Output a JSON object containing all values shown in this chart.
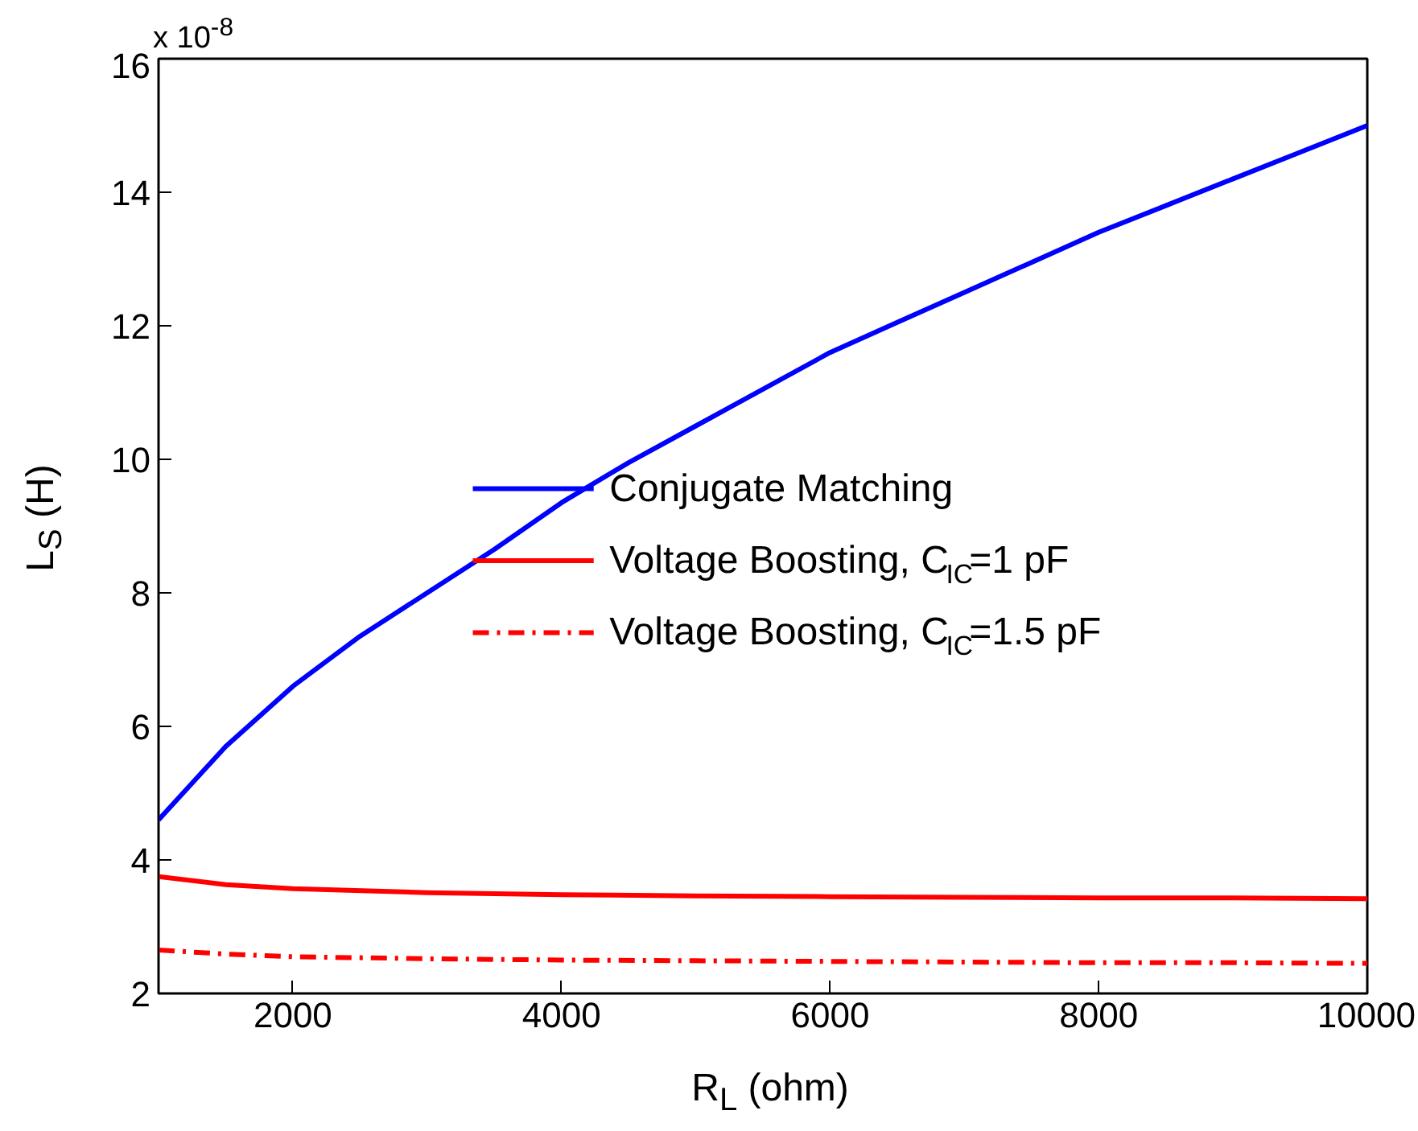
{
  "chart_data": {
    "type": "line",
    "xlabel": "R$_{L}$ (ohm)",
    "ylabel": "L$_{S}$ (H)",
    "annotations": [
      "x 10$^{-8}$"
    ],
    "xlim": [
      1000,
      10000
    ],
    "xticks": [
      2000,
      4000,
      6000,
      8000,
      10000
    ],
    "ylim": [
      2,
      16
    ],
    "yticks": [
      2,
      4,
      6,
      8,
      10,
      12,
      14,
      16
    ],
    "grid": false,
    "legend": "right",
    "series": [
      {
        "name": "Conjugate Matching",
        "color": "#0000ff",
        "line_style": "solid",
        "x": [
          1000,
          1500,
          2000,
          2500,
          3000,
          3500,
          4000,
          4500,
          5000,
          5500,
          6000,
          6500,
          7000,
          7500,
          8000,
          8500,
          9000,
          9500,
          10000
        ],
        "values": [
          4.6,
          5.7,
          6.6,
          7.35,
          8.0,
          8.65,
          9.35,
          9.95,
          10.5,
          11.05,
          11.6,
          12.05,
          12.5,
          12.95,
          13.4,
          13.8,
          14.2,
          14.6,
          15.0
        ]
      },
      {
        "name": "Voltage Boosting, C$_{IC}$=1 pF",
        "color": "#ff0000",
        "line_style": "solid",
        "x": [
          1000,
          1500,
          2000,
          3000,
          4000,
          5000,
          6000,
          7000,
          8000,
          9000,
          10000
        ],
        "values": [
          3.75,
          3.63,
          3.57,
          3.51,
          3.48,
          3.46,
          3.45,
          3.44,
          3.43,
          3.43,
          3.42
        ]
      },
      {
        "name": "Voltage Boosting, C$_{IC}$=1.5 pF",
        "color": "#ff0000",
        "line_style": "dashdot",
        "x": [
          1000,
          1500,
          2000,
          3000,
          4000,
          5000,
          6000,
          7000,
          8000,
          9000,
          10000
        ],
        "values": [
          2.65,
          2.59,
          2.55,
          2.52,
          2.5,
          2.49,
          2.48,
          2.47,
          2.46,
          2.46,
          2.45
        ]
      }
    ]
  }
}
